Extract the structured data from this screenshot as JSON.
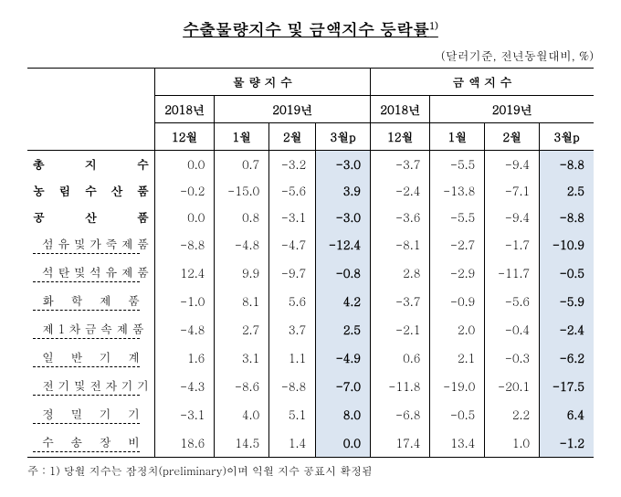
{
  "title": "수출물량지수 및 금액지수 등락률",
  "title_sup": "1)",
  "subtitle": "(달러기준, 전년동월대비, %)",
  "header_group1": "물 량 지 수",
  "header_group2": "금 액 지 수",
  "year_2018": "2018년",
  "year_2019": "2019년",
  "m12": "12월",
  "m1": "1월",
  "m2": "2월",
  "m3p": "3월p",
  "rows": [
    {
      "label": "총 지 수",
      "sub": false,
      "v": [
        "0.0",
        "0.7",
        "-3.2",
        "-3.0",
        "-3.7",
        "-5.5",
        "-9.4",
        "-8.8"
      ]
    },
    {
      "label": "농 림 수 산 품",
      "sub": false,
      "v": [
        "-0.2",
        "-15.0",
        "-5.6",
        "3.9",
        "-2.4",
        "-13.8",
        "-7.1",
        "2.5"
      ]
    },
    {
      "label": "공 산 품",
      "sub": false,
      "v": [
        "0.0",
        "0.8",
        "-3.1",
        "-3.0",
        "-3.6",
        "-5.5",
        "-9.4",
        "-8.8"
      ]
    },
    {
      "label": "섬 유 및 가 죽 제 품",
      "sub": true,
      "v": [
        "-8.8",
        "-4.8",
        "-4.7",
        "-12.4",
        "-8.1",
        "-2.7",
        "-1.7",
        "-10.9"
      ]
    },
    {
      "label": "석 탄 및 석 유 제 품",
      "sub": true,
      "v": [
        "12.4",
        "9.9",
        "-9.7",
        "-0.8",
        "2.8",
        "-2.9",
        "-11.7",
        "-0.5"
      ]
    },
    {
      "label": "화 학 제 품",
      "sub": true,
      "v": [
        "-1.0",
        "8.1",
        "5.6",
        "4.2",
        "-3.7",
        "-0.9",
        "-5.6",
        "-5.9"
      ]
    },
    {
      "label": "제 1 차 금 속 제 품",
      "sub": true,
      "v": [
        "-4.8",
        "2.7",
        "3.7",
        "2.5",
        "-2.1",
        "2.0",
        "-0.4",
        "-2.4"
      ]
    },
    {
      "label": "일 반 기 계",
      "sub": true,
      "v": [
        "1.6",
        "3.1",
        "1.1",
        "-4.9",
        "0.6",
        "2.1",
        "-0.3",
        "-6.2"
      ]
    },
    {
      "label": "전 기 및 전 자 기 기",
      "sub": true,
      "v": [
        "-4.3",
        "-8.6",
        "-8.8",
        "-7.0",
        "-11.8",
        "-19.0",
        "-20.1",
        "-17.5"
      ]
    },
    {
      "label": "정 밀 기 기",
      "sub": true,
      "v": [
        "-3.1",
        "4.0",
        "5.1",
        "8.0",
        "-6.8",
        "-0.5",
        "2.2",
        "6.4"
      ]
    },
    {
      "label": "수 송 장 비",
      "sub": true,
      "v": [
        "18.6",
        "14.5",
        "1.4",
        "0.0",
        "17.4",
        "13.4",
        "1.0",
        "-1.2"
      ]
    }
  ],
  "footnote": "주 : 1) 당월 지수는 잠정치(preliminary)이며 익월 지수 공표시 확정됨",
  "colors": {
    "highlight": "#dbe5f1"
  }
}
